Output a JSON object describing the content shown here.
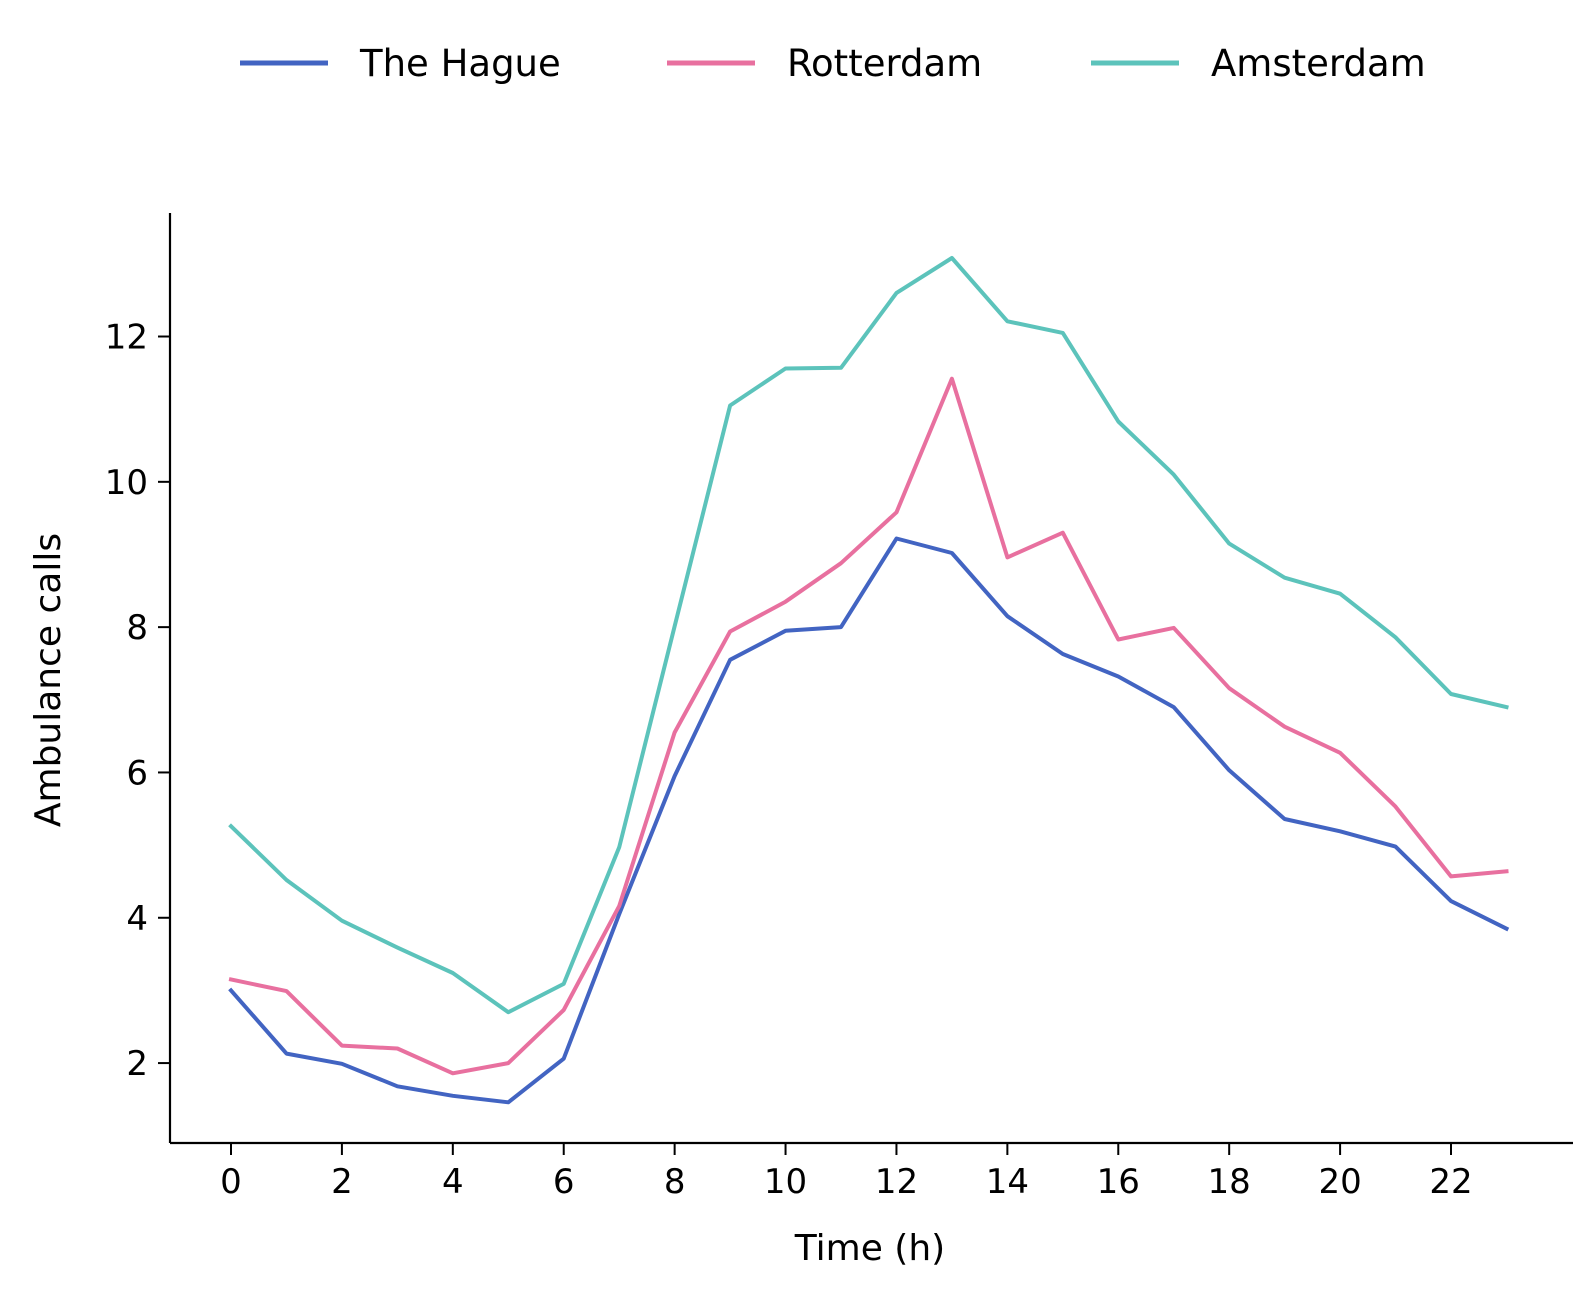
{
  "chart_data": {
    "type": "line",
    "title": "",
    "xlabel": "Time (h)",
    "ylabel": "Ambulance calls",
    "x": [
      0,
      1,
      2,
      3,
      4,
      5,
      6,
      7,
      8,
      9,
      10,
      11,
      12,
      13,
      14,
      15,
      16,
      17,
      18,
      19,
      20,
      21,
      22,
      23
    ],
    "xticks": [
      0,
      2,
      4,
      6,
      8,
      10,
      12,
      14,
      16,
      18,
      20,
      22
    ],
    "yticks": [
      2,
      4,
      6,
      8,
      10,
      12
    ],
    "xlim": [
      -1.1,
      24.2
    ],
    "ylim": [
      0.9,
      13.7
    ],
    "grid": false,
    "legend_position": "top-center",
    "series": [
      {
        "name": "The Hague",
        "color": "#4264c2",
        "values": [
          3.0,
          2.13,
          1.99,
          1.68,
          1.55,
          1.46,
          2.06,
          4.05,
          5.95,
          7.55,
          7.95,
          8.0,
          9.22,
          9.02,
          8.15,
          7.63,
          7.32,
          6.9,
          6.03,
          5.36,
          5.19,
          4.98,
          4.23,
          3.85
        ]
      },
      {
        "name": "Rotterdam",
        "color": "#e8709f",
        "values": [
          3.15,
          2.99,
          2.24,
          2.2,
          1.86,
          2.0,
          2.73,
          4.16,
          6.55,
          7.94,
          8.35,
          8.88,
          9.58,
          11.42,
          8.96,
          9.3,
          7.83,
          7.99,
          7.16,
          6.63,
          6.27,
          5.53,
          4.57,
          4.64
        ]
      },
      {
        "name": "Amsterdam",
        "color": "#5cc3bb",
        "values": [
          5.26,
          4.52,
          3.96,
          3.59,
          3.24,
          2.7,
          3.09,
          4.97,
          8.01,
          11.05,
          11.56,
          11.57,
          12.6,
          13.08,
          12.21,
          12.05,
          10.83,
          10.1,
          9.15,
          8.68,
          8.46,
          7.86,
          7.08,
          6.9
        ]
      }
    ]
  }
}
